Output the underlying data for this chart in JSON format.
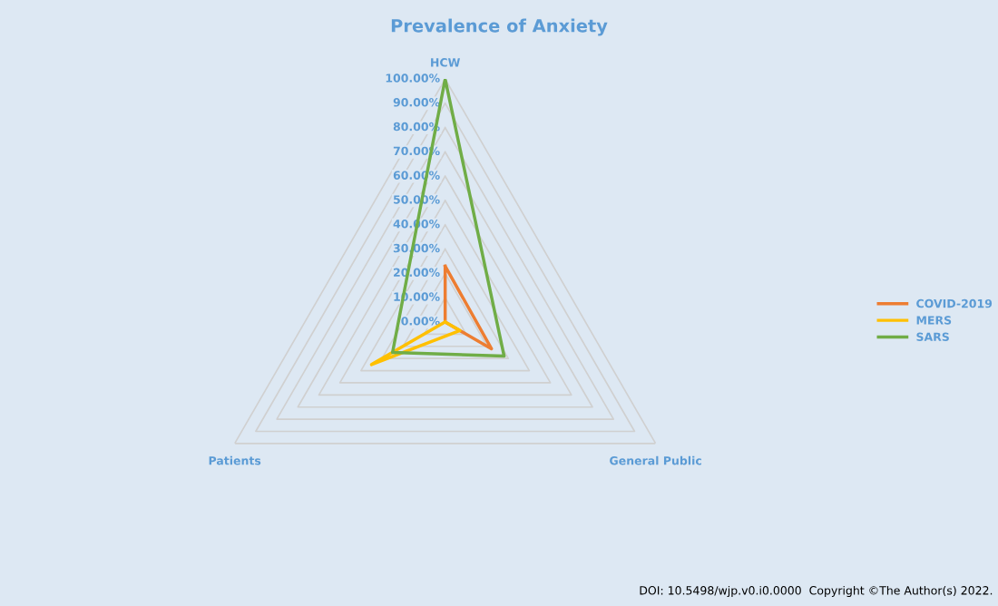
{
  "chart_data": {
    "type": "radar",
    "title": "Prevalence of Anxiety",
    "categories": [
      "HCW",
      "General Public",
      "Patients"
    ],
    "series": [
      {
        "name": "COVID-2019",
        "color": "#ed7d31",
        "values": [
          23,
          22,
          0
        ]
      },
      {
        "name": "MERS",
        "color": "#ffc000",
        "values": [
          0,
          7,
          35
        ]
      },
      {
        "name": "SARS",
        "color": "#70ad47",
        "values": [
          100,
          28,
          25
        ]
      }
    ],
    "ylim": [
      0,
      100
    ],
    "yticks": [
      {
        "value": 0,
        "label": "0.00%"
      },
      {
        "value": 10,
        "label": "10.00%"
      },
      {
        "value": 20,
        "label": "20.00%"
      },
      {
        "value": 30,
        "label": "30.00%"
      },
      {
        "value": 40,
        "label": "40.00%"
      },
      {
        "value": 50,
        "label": "50.00%"
      },
      {
        "value": 60,
        "label": "60.00%"
      },
      {
        "value": 70,
        "label": "70.00%"
      },
      {
        "value": 80,
        "label": "80.00%"
      },
      {
        "value": 90,
        "label": "90.00%"
      },
      {
        "value": 100,
        "label": "100.00%"
      }
    ],
    "grid": true,
    "legend": "right",
    "marker": "none",
    "line_style": "solid",
    "annotations": [
      "DOI: 10.5498/wjp.v0.i0.0000  Copyright ©The Author(s) 2022."
    ]
  }
}
